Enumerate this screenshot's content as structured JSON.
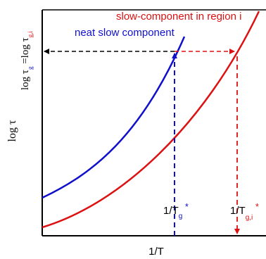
{
  "colors": {
    "blue": "#1010cc",
    "red": "#dd1111",
    "black": "#000000"
  },
  "labels": {
    "red_curve": "slow-component in region i",
    "blue_curve": "neat slow component",
    "xlabel": "1/T",
    "ylabel": "log τ",
    "y_tick": {
      "prefix": "log τ",
      "g_sub": "g",
      "eq": " =log τ",
      "gi_sub": "g,i"
    },
    "tg_marker": {
      "prefix": "1/T",
      "sub": "g",
      "star": " *"
    },
    "tgi_marker": {
      "prefix": "1/T",
      "sub": "g,i",
      "star": " *"
    }
  }
}
